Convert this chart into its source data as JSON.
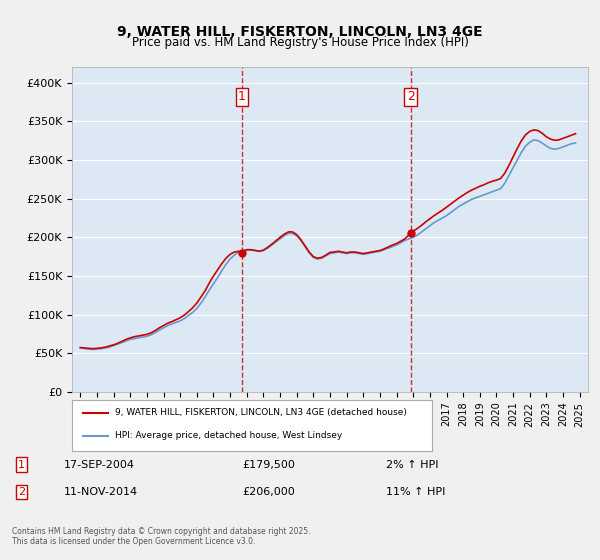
{
  "title": "9, WATER HILL, FISKERTON, LINCOLN, LN3 4GE",
  "subtitle": "Price paid vs. HM Land Registry's House Price Index (HPI)",
  "background_color": "#dce9f5",
  "plot_bg_color": "#dce9f5",
  "y_min": 0,
  "y_max": 420000,
  "y_ticks": [
    0,
    50000,
    100000,
    150000,
    200000,
    250000,
    300000,
    350000,
    400000
  ],
  "y_tick_labels": [
    "£0",
    "£50K",
    "£100K",
    "£150K",
    "£200K",
    "£250K",
    "£300K",
    "£350K",
    "£400K"
  ],
  "x_start_year": 1995,
  "x_end_year": 2025,
  "sale1_date": "17-SEP-2004",
  "sale1_price": 179500,
  "sale1_label": "1",
  "sale1_x": 2004.71,
  "sale2_date": "11-NOV-2014",
  "sale2_price": 206000,
  "sale2_label": "2",
  "sale2_x": 2014.86,
  "sale1_hpi_pct": "2% ↑ HPI",
  "sale2_hpi_pct": "11% ↑ HPI",
  "line_color_property": "#cc0000",
  "line_color_hpi": "#6699cc",
  "dashed_line_color": "#cc0000",
  "legend_label_property": "9, WATER HILL, FISKERTON, LINCOLN, LN3 4GE (detached house)",
  "legend_label_hpi": "HPI: Average price, detached house, West Lindsey",
  "footer": "Contains HM Land Registry data © Crown copyright and database right 2025.\nThis data is licensed under the Open Government Licence v3.0.",
  "hpi_data": {
    "years": [
      1995.0,
      1995.25,
      1995.5,
      1995.75,
      1996.0,
      1996.25,
      1996.5,
      1996.75,
      1997.0,
      1997.25,
      1997.5,
      1997.75,
      1998.0,
      1998.25,
      1998.5,
      1998.75,
      1999.0,
      1999.25,
      1999.5,
      1999.75,
      2000.0,
      2000.25,
      2000.5,
      2000.75,
      2001.0,
      2001.25,
      2001.5,
      2001.75,
      2002.0,
      2002.25,
      2002.5,
      2002.75,
      2003.0,
      2003.25,
      2003.5,
      2003.75,
      2004.0,
      2004.25,
      2004.5,
      2004.75,
      2005.0,
      2005.25,
      2005.5,
      2005.75,
      2006.0,
      2006.25,
      2006.5,
      2006.75,
      2007.0,
      2007.25,
      2007.5,
      2007.75,
      2008.0,
      2008.25,
      2008.5,
      2008.75,
      2009.0,
      2009.25,
      2009.5,
      2009.75,
      2010.0,
      2010.25,
      2010.5,
      2010.75,
      2011.0,
      2011.25,
      2011.5,
      2011.75,
      2012.0,
      2012.25,
      2012.5,
      2012.75,
      2013.0,
      2013.25,
      2013.5,
      2013.75,
      2014.0,
      2014.25,
      2014.5,
      2014.75,
      2015.0,
      2015.25,
      2015.5,
      2015.75,
      2016.0,
      2016.25,
      2016.5,
      2016.75,
      2017.0,
      2017.25,
      2017.5,
      2017.75,
      2018.0,
      2018.25,
      2018.5,
      2018.75,
      2019.0,
      2019.25,
      2019.5,
      2019.75,
      2020.0,
      2020.25,
      2020.5,
      2020.75,
      2021.0,
      2021.25,
      2021.5,
      2021.75,
      2022.0,
      2022.25,
      2022.5,
      2022.75,
      2023.0,
      2023.25,
      2023.5,
      2023.75,
      2024.0,
      2024.25,
      2024.5,
      2024.75
    ],
    "values": [
      57000,
      56000,
      55500,
      55000,
      55500,
      56000,
      57000,
      58000,
      60000,
      62000,
      64000,
      66000,
      68000,
      69000,
      70000,
      71000,
      72000,
      74000,
      77000,
      80000,
      83000,
      86000,
      88000,
      90000,
      92000,
      95000,
      99000,
      103000,
      108000,
      115000,
      123000,
      132000,
      140000,
      148000,
      157000,
      165000,
      172000,
      177000,
      181000,
      183000,
      184000,
      184000,
      183000,
      182000,
      183000,
      186000,
      190000,
      194000,
      198000,
      202000,
      205000,
      205000,
      202000,
      196000,
      188000,
      180000,
      174000,
      172000,
      173000,
      176000,
      179000,
      180000,
      181000,
      180000,
      179000,
      180000,
      180000,
      179000,
      178000,
      179000,
      180000,
      181000,
      182000,
      184000,
      186000,
      188000,
      190000,
      193000,
      196000,
      198000,
      200000,
      203000,
      207000,
      211000,
      215000,
      219000,
      222000,
      225000,
      228000,
      232000,
      236000,
      240000,
      243000,
      246000,
      249000,
      251000,
      253000,
      255000,
      257000,
      259000,
      261000,
      263000,
      270000,
      280000,
      290000,
      300000,
      310000,
      318000,
      323000,
      326000,
      325000,
      322000,
      318000,
      315000,
      314000,
      315000,
      317000,
      319000,
      321000,
      322000
    ]
  },
  "property_data": {
    "years": [
      1995.0,
      1995.25,
      1995.5,
      1995.75,
      1996.0,
      1996.25,
      1996.5,
      1996.75,
      1997.0,
      1997.25,
      1997.5,
      1997.75,
      1998.0,
      1998.25,
      1998.5,
      1998.75,
      1999.0,
      1999.25,
      1999.5,
      1999.75,
      2000.0,
      2000.25,
      2000.5,
      2000.75,
      2001.0,
      2001.25,
      2001.5,
      2001.75,
      2002.0,
      2002.25,
      2002.5,
      2002.75,
      2003.0,
      2003.25,
      2003.5,
      2003.75,
      2004.0,
      2004.25,
      2004.5,
      2004.71,
      2005.0,
      2005.25,
      2005.5,
      2005.75,
      2006.0,
      2006.25,
      2006.5,
      2006.75,
      2007.0,
      2007.25,
      2007.5,
      2007.75,
      2008.0,
      2008.25,
      2008.5,
      2008.75,
      2009.0,
      2009.25,
      2009.5,
      2009.75,
      2010.0,
      2010.25,
      2010.5,
      2010.75,
      2011.0,
      2011.25,
      2011.5,
      2011.75,
      2012.0,
      2012.25,
      2012.5,
      2012.75,
      2013.0,
      2013.25,
      2013.5,
      2013.75,
      2014.0,
      2014.25,
      2014.5,
      2014.86,
      2015.0,
      2015.25,
      2015.5,
      2015.75,
      2016.0,
      2016.25,
      2016.5,
      2016.75,
      2017.0,
      2017.25,
      2017.5,
      2017.75,
      2018.0,
      2018.25,
      2018.5,
      2018.75,
      2019.0,
      2019.25,
      2019.5,
      2019.75,
      2020.0,
      2020.25,
      2020.5,
      2020.75,
      2021.0,
      2021.25,
      2021.5,
      2021.75,
      2022.0,
      2022.25,
      2022.5,
      2022.75,
      2023.0,
      2023.25,
      2023.5,
      2023.75,
      2024.0,
      2024.25,
      2024.5,
      2024.75
    ],
    "values": [
      57500,
      57000,
      56500,
      56000,
      56500,
      57000,
      58000,
      59500,
      61000,
      63000,
      65500,
      68000,
      70000,
      71500,
      72500,
      73500,
      74500,
      76500,
      79500,
      83000,
      86000,
      89000,
      91000,
      93500,
      96000,
      99500,
      104000,
      109000,
      115000,
      123000,
      131000,
      141000,
      150000,
      158000,
      166000,
      173000,
      178000,
      181000,
      182000,
      179500,
      184000,
      184000,
      183000,
      182000,
      183500,
      187000,
      191000,
      195500,
      200000,
      204000,
      207000,
      207000,
      203500,
      197000,
      189000,
      181000,
      175000,
      173000,
      174000,
      177000,
      180500,
      181000,
      182000,
      181000,
      180000,
      181000,
      181000,
      180000,
      179000,
      180000,
      181000,
      182000,
      183000,
      185000,
      187500,
      190000,
      192000,
      195000,
      198000,
      206000,
      208000,
      211500,
      215500,
      220000,
      224000,
      228000,
      231500,
      235000,
      239000,
      243000,
      247000,
      251000,
      254500,
      258000,
      261000,
      263500,
      266000,
      268000,
      270500,
      272500,
      274000,
      276000,
      283000,
      293000,
      304000,
      315000,
      325000,
      332500,
      337000,
      339000,
      338000,
      334500,
      330000,
      327000,
      325500,
      326000,
      328000,
      330000,
      332000,
      334000
    ]
  }
}
